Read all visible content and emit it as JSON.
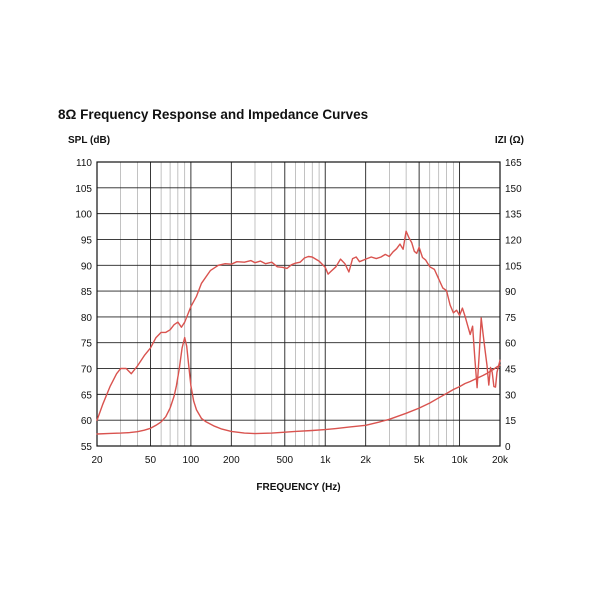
{
  "chart_data": {
    "type": "line",
    "title": "8Ω Frequency Response and Impedance Curves",
    "xlabel": "FREQUENCY (Hz)",
    "ylabel_left": "SPL (dB)",
    "ylabel_right": "IZI (Ω)",
    "x_scale": "log",
    "xlim": [
      20,
      20000
    ],
    "ylim_left": [
      55,
      110
    ],
    "ylim_right": [
      0,
      165
    ],
    "x_ticks": [
      {
        "value": 20,
        "label": "20"
      },
      {
        "value": 50,
        "label": "50"
      },
      {
        "value": 100,
        "label": "100"
      },
      {
        "value": 200,
        "label": "200"
      },
      {
        "value": 500,
        "label": "500"
      },
      {
        "value": 1000,
        "label": "1k"
      },
      {
        "value": 2000,
        "label": "2k"
      },
      {
        "value": 5000,
        "label": "5k"
      },
      {
        "value": 10000,
        "label": "10k"
      },
      {
        "value": 20000,
        "label": "20k"
      }
    ],
    "y_ticks_left": [
      55,
      60,
      65,
      70,
      75,
      80,
      85,
      90,
      95,
      100,
      105,
      110
    ],
    "y_ticks_right": [
      0,
      15,
      30,
      45,
      60,
      75,
      90,
      105,
      120,
      135,
      150,
      165
    ],
    "grid": true,
    "series": [
      {
        "axis": "left",
        "color": "#d9534f",
        "x": [
          20,
          22,
          25,
          28,
          30,
          33,
          36,
          40,
          45,
          50,
          55,
          60,
          65,
          70,
          75,
          80,
          85,
          90,
          100,
          110,
          120,
          140,
          160,
          180,
          200,
          220,
          250,
          280,
          300,
          330,
          360,
          400,
          440,
          480,
          520,
          560,
          600,
          650,
          700,
          750,
          800,
          850,
          900,
          1000,
          1050,
          1100,
          1200,
          1300,
          1400,
          1500,
          1600,
          1700,
          1800,
          2000,
          2200,
          2400,
          2600,
          2800,
          3000,
          3200,
          3400,
          3600,
          3800,
          4000,
          4200,
          4400,
          4600,
          4800,
          5000,
          5300,
          5600,
          6000,
          6500,
          7000,
          7500,
          8000,
          8500,
          9000,
          9500,
          10000,
          10500,
          11000,
          11500,
          12000,
          12500,
          13000,
          13500,
          14000,
          14500,
          15000,
          15500,
          16000,
          16500,
          17000,
          17500,
          18000,
          18500,
          19000,
          20000
        ],
        "values": [
          60,
          63,
          66.5,
          69,
          70,
          70,
          69,
          70.5,
          72.5,
          74,
          76,
          77,
          77,
          77.5,
          78.5,
          79,
          78,
          79,
          82,
          84,
          86.5,
          89,
          90,
          90.3,
          90.2,
          90.7,
          90.6,
          90.9,
          90.5,
          90.8,
          90.3,
          90.6,
          89.7,
          89.6,
          89.4,
          90.1,
          90.4,
          90.6,
          91.4,
          91.7,
          91.6,
          91.2,
          90.8,
          89.6,
          88.3,
          88.8,
          89.7,
          91.2,
          90.3,
          88.7,
          91.3,
          91.6,
          90.7,
          91.2,
          91.6,
          91.3,
          91.6,
          92.1,
          91.7,
          92.6,
          93.2,
          94.1,
          93.1,
          96.6,
          95.3,
          94.4,
          92.7,
          92.3,
          93.5,
          91.5,
          91,
          89.7,
          89.2,
          87.3,
          85.6,
          85.1,
          82.3,
          80.8,
          81.3,
          80.3,
          81.7,
          80.1,
          78.3,
          76.6,
          78.2,
          71.8,
          66.3,
          72.7,
          79.8,
          76.5,
          73.5,
          70.6,
          66.8,
          70.2,
          69.3,
          66.5,
          66.4,
          69.3,
          71.6
        ]
      },
      {
        "axis": "right",
        "color": "#d9534f",
        "x": [
          20,
          25,
          30,
          35,
          40,
          45,
          50,
          55,
          60,
          65,
          70,
          75,
          78,
          82,
          86,
          90,
          93,
          96,
          100,
          105,
          110,
          120,
          130,
          150,
          170,
          200,
          250,
          300,
          400,
          500,
          600,
          800,
          1000,
          1200,
          1500,
          2000,
          2500,
          3000,
          4000,
          5000,
          6000,
          7000,
          8000,
          9000,
          10000,
          11000,
          12000,
          13000,
          14000,
          15000,
          16000,
          17000,
          18000,
          19000,
          20000
        ],
        "values": [
          7,
          7.3,
          7.5,
          7.8,
          8.3,
          9.2,
          10.3,
          12,
          14,
          17,
          22,
          29,
          35,
          45,
          57,
          63,
          58,
          48,
          35,
          26,
          21,
          16,
          14,
          11.5,
          9.8,
          8.5,
          7.5,
          7.2,
          7.5,
          8,
          8.5,
          9,
          9.5,
          10.1,
          11,
          12,
          13.8,
          15.5,
          19,
          22,
          25,
          28,
          30.5,
          32.8,
          34.5,
          36.3,
          37.5,
          38.8,
          40,
          41,
          42.2,
          43.5,
          44.7,
          46,
          47
        ]
      }
    ]
  }
}
